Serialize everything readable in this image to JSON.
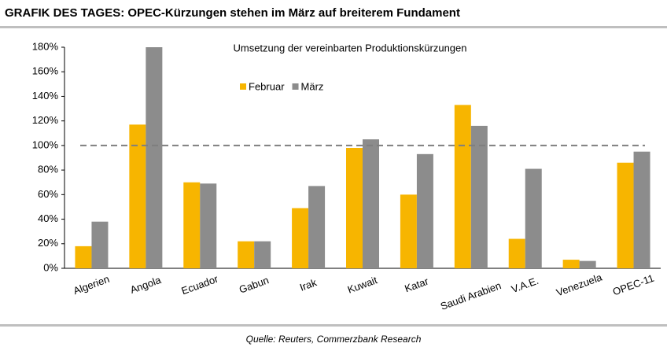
{
  "chart_data": {
    "type": "bar",
    "title": "GRAFIK DES TAGES: OPEC-Kürzungen stehen im März auf breiterem Fundament",
    "subtitle": "Umsetzung der vereinbarten Produktionskürzungen",
    "source": "Quelle: Reuters, Commerzbank Research",
    "categories": [
      "Algerien",
      "Angola",
      "Ecuador",
      "Gabun",
      "Irak",
      "Kuwait",
      "Katar",
      "Saudi Arabien",
      "V.A.E.",
      "Venezuela",
      "OPEC-11"
    ],
    "series": [
      {
        "name": "Februar",
        "color": "#f7b500",
        "values": [
          18,
          117,
          70,
          22,
          49,
          98,
          60,
          133,
          24,
          7,
          86
        ]
      },
      {
        "name": "März",
        "color": "#8c8c8c",
        "values": [
          38,
          180,
          69,
          22,
          67,
          105,
          93,
          116,
          81,
          6,
          95
        ]
      }
    ],
    "reference_line": 100,
    "ylim": [
      0,
      180
    ],
    "yticks": [
      {
        "value": 0,
        "label": "0%"
      },
      {
        "value": 20,
        "label": "20%"
      },
      {
        "value": 40,
        "label": "40%"
      },
      {
        "value": 60,
        "label": "60%"
      },
      {
        "value": 80,
        "label": "80%"
      },
      {
        "value": 100,
        "label": "100%"
      },
      {
        "value": 120,
        "label": "120%"
      },
      {
        "value": 140,
        "label": "140%"
      },
      {
        "value": 160,
        "label": "160%"
      },
      {
        "value": 180,
        "label": "180%"
      }
    ]
  }
}
